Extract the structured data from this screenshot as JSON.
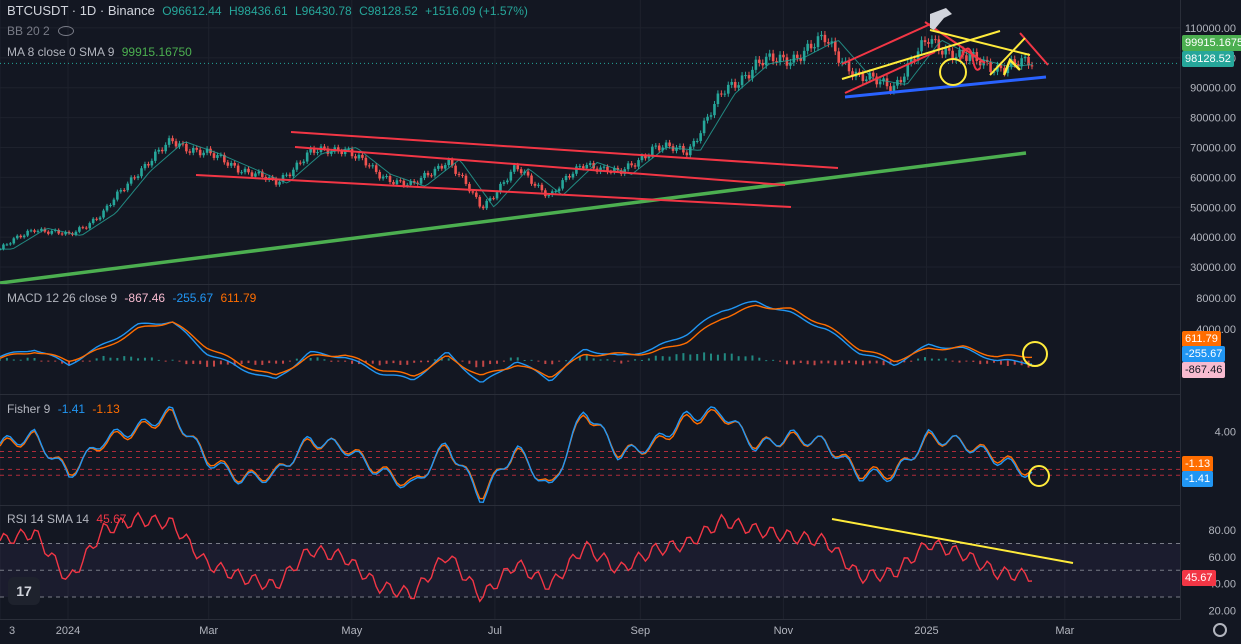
{
  "header": {
    "symbol": "BTCUSDT · 1D · Binance",
    "open": "O96612.44",
    "high": "H98436.61",
    "low": "L96430.78",
    "close": "C98128.52",
    "change": "+1516.09 (+1.57%)",
    "bb": "BB 20 2",
    "ma_label": "MA 8 close 0 SMA 9",
    "ma_value": "99915.16750"
  },
  "panes": {
    "macd": {
      "label": "MACD 12 26 close 9",
      "v1": "-867.46",
      "v2": "-255.67",
      "v3": "611.79"
    },
    "fisher": {
      "label": "Fisher 9",
      "v1": "-1.41",
      "v2": "-1.13"
    },
    "rsi": {
      "label": "RSI 14 SMA 14",
      "v1": "45.67"
    }
  },
  "price_tags": {
    "ma": "99915.1675",
    "close": "98128.52",
    "macd_signal": "611.79",
    "macd_line": "-255.67",
    "macd_hist": "-867.46",
    "fisher_trigger": "-1.13",
    "fisher_value": "-1.41",
    "rsi": "45.67"
  },
  "colors": {
    "up": "#26a69a",
    "down": "#ef5350",
    "macd": "#2196f3",
    "signal": "#ff6d00",
    "rsi": "#f23645",
    "trend_red": "#f23645",
    "trend_green": "#4caf50",
    "trend_yellow": "#ffeb3b",
    "trend_blue": "#2962ff"
  },
  "logo": "17",
  "chart_data": {
    "type": "line",
    "title": "BTCUSDT · 1D · Binance",
    "price_axis": {
      "ticks": [
        110000,
        100000,
        90000,
        80000,
        70000,
        60000,
        50000,
        40000,
        30000
      ],
      "tick_labels": [
        "110000.00",
        "100000.00",
        "90000.00",
        "80000.00",
        "70000.00",
        "60000.00",
        "50000.00",
        "40000.00",
        "30000.00"
      ],
      "ylim": [
        25000,
        116000
      ]
    },
    "macd_axis": {
      "tick_labels": [
        "8000.00",
        "4000.00"
      ],
      "ticks": [
        8000,
        4000
      ]
    },
    "fisher_axis": {
      "tick_labels": [
        "4.00"
      ],
      "ticks": [
        4
      ]
    },
    "rsi_axis": {
      "tick_labels": [
        "80.00",
        "60.00",
        "40.00",
        "20.00"
      ],
      "ticks": [
        80,
        60,
        40,
        20
      ]
    },
    "time_labels": [
      "3",
      "2024",
      "Mar",
      "May",
      "Jul",
      "Sep",
      "Nov",
      "2025",
      "Mar"
    ],
    "price_series": {
      "name": "BTCUSDT",
      "x": [
        "2023-12-03",
        "2024-01-01",
        "2024-01-20",
        "2024-02-10",
        "2024-03-01",
        "2024-03-13",
        "2024-04-01",
        "2024-04-20",
        "2024-05-01",
        "2024-05-20",
        "2024-06-05",
        "2024-06-25",
        "2024-07-05",
        "2024-07-25",
        "2024-08-05",
        "2024-08-25",
        "2024-09-06",
        "2024-09-25",
        "2024-10-10",
        "2024-10-28",
        "2024-11-05",
        "2024-11-12",
        "2024-11-22",
        "2024-12-05",
        "2024-12-17",
        "2024-12-30",
        "2025-01-13",
        "2025-01-21",
        "2025-02-01",
        "2025-02-09",
        "2025-02-15"
      ],
      "values": [
        36000,
        43000,
        40500,
        48000,
        62000,
        72000,
        68000,
        63000,
        58000,
        68000,
        70000,
        61000,
        57000,
        66000,
        50000,
        63000,
        54000,
        65000,
        61000,
        70000,
        69000,
        88000,
        98000,
        100000,
        106000,
        93000,
        91000,
        106000,
        100000,
        97000,
        98128
      ]
    },
    "macd_series": [
      {
        "name": "MACD",
        "values": [
          500,
          1500,
          -500,
          2000,
          4500,
          5000,
          1000,
          -1000,
          -2500,
          1000,
          500,
          -1500,
          -2500,
          1000,
          -3000,
          0,
          -2500,
          1500,
          500,
          1500,
          3500,
          6500,
          7500,
          6000,
          4000,
          1000,
          -500,
          2000,
          1500,
          0,
          -255.67
        ]
      },
      {
        "name": "Signal",
        "values": [
          300,
          1200,
          0,
          1500,
          4000,
          5000,
          1800,
          -500,
          -2000,
          500,
          800,
          -1000,
          -2000,
          500,
          -2000,
          -500,
          -2000,
          800,
          800,
          1000,
          2500,
          5500,
          7000,
          6500,
          4500,
          1500,
          0,
          1500,
          1700,
          500,
          611.79
        ]
      }
    ],
    "fisher_series": [
      {
        "name": "Fisher",
        "values": [
          2.5,
          3.5,
          -1.5,
          3.0,
          4.5,
          6.5,
          0.5,
          -2.0,
          -1.5,
          3.0,
          2.0,
          -1.0,
          -3.0,
          2.5,
          -4.5,
          2.0,
          -3.5,
          7.0,
          1.0,
          2.5,
          6.0,
          6.5,
          2.0,
          3.5,
          2.5,
          -1.5,
          -1.5,
          3.5,
          2.5,
          0.5,
          -1.41
        ]
      },
      {
        "name": "Trigger",
        "values": [
          2.2,
          3.3,
          -1.2,
          2.7,
          4.2,
          6.2,
          0.8,
          -1.8,
          -1.3,
          2.7,
          2.2,
          -0.8,
          -2.7,
          2.2,
          -4.0,
          1.7,
          -3.2,
          6.6,
          1.3,
          2.2,
          5.6,
          6.2,
          2.3,
          3.2,
          2.6,
          -1.2,
          -1.2,
          3.2,
          2.6,
          0.8,
          -1.13
        ]
      }
    ],
    "rsi_series": {
      "name": "RSI",
      "values": [
        72,
        78,
        42,
        80,
        88,
        85,
        55,
        45,
        38,
        65,
        60,
        38,
        32,
        62,
        30,
        55,
        38,
        68,
        50,
        65,
        70,
        87,
        80,
        75,
        72,
        45,
        48,
        70,
        62,
        48,
        45.67
      ],
      "bands": [
        70,
        50,
        30
      ]
    }
  }
}
